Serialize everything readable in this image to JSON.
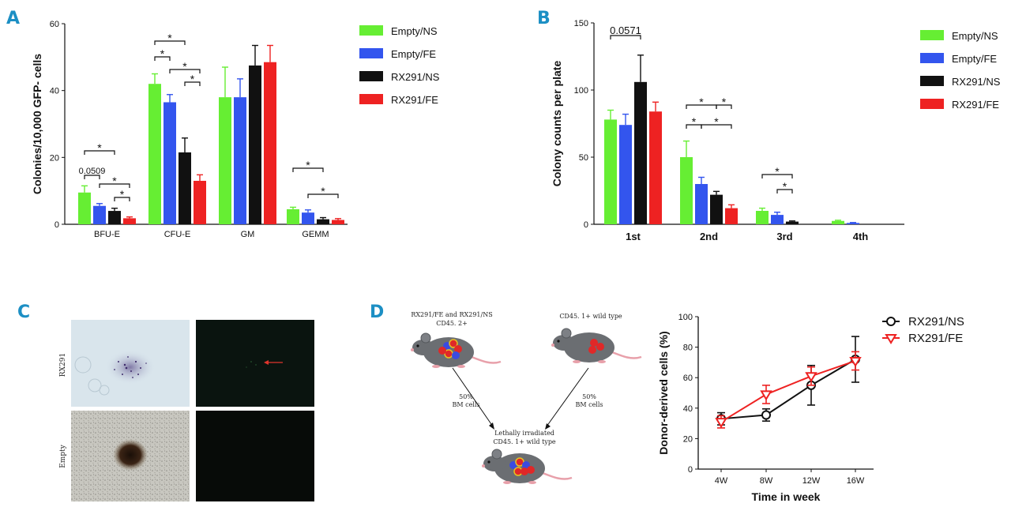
{
  "chart_data": [
    {
      "panel": "A",
      "type": "bar",
      "ylabel": "Colonies/10,000 GFP- cells",
      "ylim": [
        0,
        60
      ],
      "yticks": [
        0,
        20,
        40,
        60
      ],
      "categories": [
        "BFU-E",
        "CFU-E",
        "GM",
        "GEMM"
      ],
      "series": [
        {
          "name": "Empty/NS",
          "color": "#66ee33",
          "values": [
            9.5,
            42,
            38,
            4.5
          ],
          "errors": [
            2,
            3,
            9,
            0.6
          ]
        },
        {
          "name": "Empty/FE",
          "color": "#3355ee",
          "values": [
            5.5,
            36.5,
            38,
            3.5
          ],
          "errors": [
            0.7,
            2.3,
            5.5,
            0.8
          ]
        },
        {
          "name": "RX291/NS",
          "color": "#111111",
          "values": [
            4,
            21.5,
            47.5,
            1.5
          ],
          "errors": [
            0.8,
            4.3,
            6,
            0.5
          ]
        },
        {
          "name": "RX291/FE",
          "color": "#ee2222",
          "values": [
            1.8,
            13,
            48.5,
            1.3
          ],
          "errors": [
            0.4,
            1.8,
            5,
            0.4
          ]
        }
      ],
      "significance": [
        {
          "text": "*"
        },
        {
          "text": "0.0509"
        },
        {
          "text": "*"
        },
        {
          "text": "*"
        },
        {
          "text": "*"
        },
        {
          "text": "*"
        },
        {
          "text": "*"
        },
        {
          "text": "*"
        },
        {
          "text": "*"
        },
        {
          "text": "*"
        }
      ]
    },
    {
      "panel": "B",
      "type": "bar",
      "ylabel": "Colony counts per plate",
      "ylim": [
        0,
        150
      ],
      "yticks": [
        0,
        50,
        100,
        150
      ],
      "categories": [
        "1st",
        "2nd",
        "3rd",
        "4th"
      ],
      "series": [
        {
          "name": "Empty/NS",
          "color": "#66ee33",
          "values": [
            78,
            50,
            10,
            2.5
          ],
          "errors": [
            7,
            12,
            2,
            0.5
          ]
        },
        {
          "name": "Empty/FE",
          "color": "#3355ee",
          "values": [
            74,
            30,
            7,
            1
          ],
          "errors": [
            8,
            5,
            2,
            0.3
          ]
        },
        {
          "name": "RX291/NS",
          "color": "#111111",
          "values": [
            106,
            22,
            2,
            0
          ],
          "errors": [
            20,
            2.5,
            0.5,
            0
          ]
        },
        {
          "name": "RX291/FE",
          "color": "#ee2222",
          "values": [
            84,
            12,
            0,
            0
          ],
          "errors": [
            7,
            2.5,
            0,
            0
          ]
        }
      ],
      "significance": [
        {
          "text": "0.0571"
        },
        {
          "text": "*"
        },
        {
          "text": "*"
        },
        {
          "text": "*"
        },
        {
          "text": "*"
        },
        {
          "text": "*"
        },
        {
          "text": "*"
        }
      ]
    },
    {
      "panel": "D",
      "type": "line",
      "xlabel": "Time in week",
      "ylabel": "Donor-derived cells (%)",
      "ylim": [
        0,
        100
      ],
      "yticks": [
        0,
        20,
        40,
        60,
        80,
        100
      ],
      "x": [
        "4W",
        "8W",
        "12W",
        "16W"
      ],
      "series": [
        {
          "name": "RX291/NS",
          "color": "#111111",
          "marker": "circle",
          "values": [
            33,
            35.5,
            55,
            72
          ],
          "errors": [
            4,
            4,
            13,
            15
          ]
        },
        {
          "name": "RX291/FE",
          "color": "#ee2222",
          "marker": "triangle-down",
          "values": [
            31,
            49,
            61,
            71
          ],
          "errors": [
            4,
            6,
            6,
            6
          ]
        }
      ]
    }
  ],
  "panel_letters": {
    "A": "A",
    "B": "B",
    "C": "C",
    "D": "D"
  },
  "panel_c": {
    "row_labels": [
      "RX291",
      "Empty"
    ]
  },
  "panel_d_schematic": {
    "donor_left": "RX291/FE and RX291/NS",
    "donor_left_sub": "CD45. 2+",
    "donor_right": "CD45. 1+ wild type",
    "bm_left_1": "50%",
    "bm_left_2": "BM cells",
    "bm_right_1": "50%",
    "bm_right_2": "BM cells",
    "recipient_1": "Lethally irradiated",
    "recipient_2": "CD45. 1+ wild type"
  },
  "colors": {
    "panel_letter": "#1c8fc4",
    "green": "#66ee33",
    "blue": "#3355ee",
    "black": "#111111",
    "red": "#ee2222",
    "mouse": "#6b6e72"
  }
}
